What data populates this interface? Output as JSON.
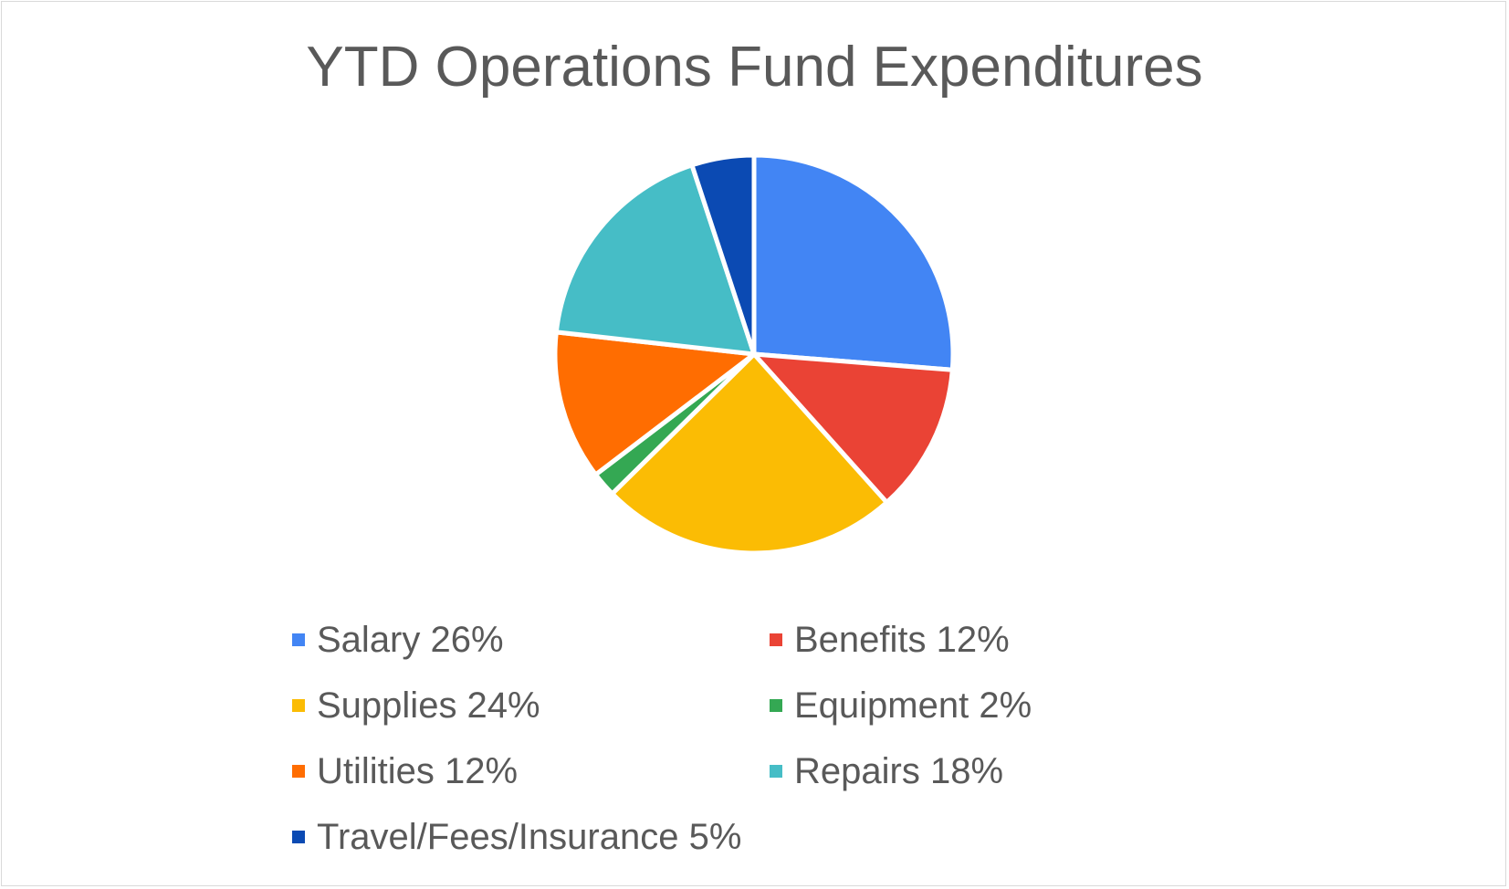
{
  "chart_data": {
    "type": "pie",
    "title": "YTD Operations Fund Expenditures",
    "legend_position": "bottom",
    "slices": [
      {
        "label": "Salary 26%",
        "value": 26,
        "color": "#4285F4"
      },
      {
        "label": "Benefits 12%",
        "value": 12,
        "color": "#EA4335"
      },
      {
        "label": "Supplies 24%",
        "value": 24,
        "color": "#FBBC04"
      },
      {
        "label": "Equipment 2%",
        "value": 2,
        "color": "#34A853"
      },
      {
        "label": "Utilities 12%",
        "value": 12,
        "color": "#FF6D01"
      },
      {
        "label": "Repairs 18%",
        "value": 18,
        "color": "#46BDC6"
      },
      {
        "label": "Travel/Fees/Insurance 5%",
        "value": 5,
        "color": "#0B4AB3"
      }
    ]
  }
}
